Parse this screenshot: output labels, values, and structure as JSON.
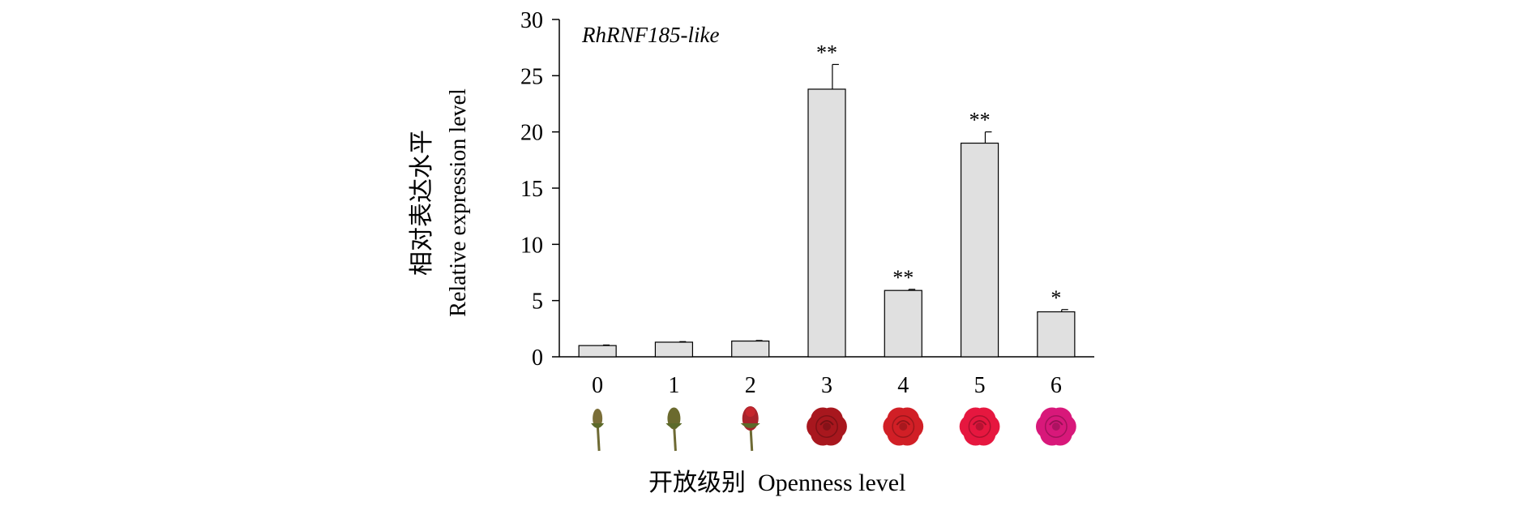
{
  "chart_data": {
    "type": "bar",
    "title": "RhRNF185-like",
    "ylabel_cn": "相对表达水平",
    "ylabel": "Relative expression level",
    "xlabel_cn": "开放级别",
    "xlabel": "Openness level",
    "categories": [
      "0",
      "1",
      "2",
      "3",
      "4",
      "5",
      "6"
    ],
    "values": [
      1.0,
      1.3,
      1.4,
      23.8,
      5.9,
      19.0,
      4.0
    ],
    "errors": [
      0.05,
      0.05,
      0.05,
      2.2,
      0.1,
      1.0,
      0.2
    ],
    "significance": [
      "",
      "",
      "",
      "**",
      "**",
      "**",
      "*"
    ],
    "ylim": [
      0,
      30
    ],
    "yticks": [
      0,
      5,
      10,
      15,
      20,
      25,
      30
    ],
    "bar_color": "#e0e0e0",
    "flower_colors": [
      "#7a6e38",
      "#6b6a2e",
      "#a8232b",
      "#a8171e",
      "#d11f26",
      "#e6173f",
      "#d8187a"
    ]
  }
}
